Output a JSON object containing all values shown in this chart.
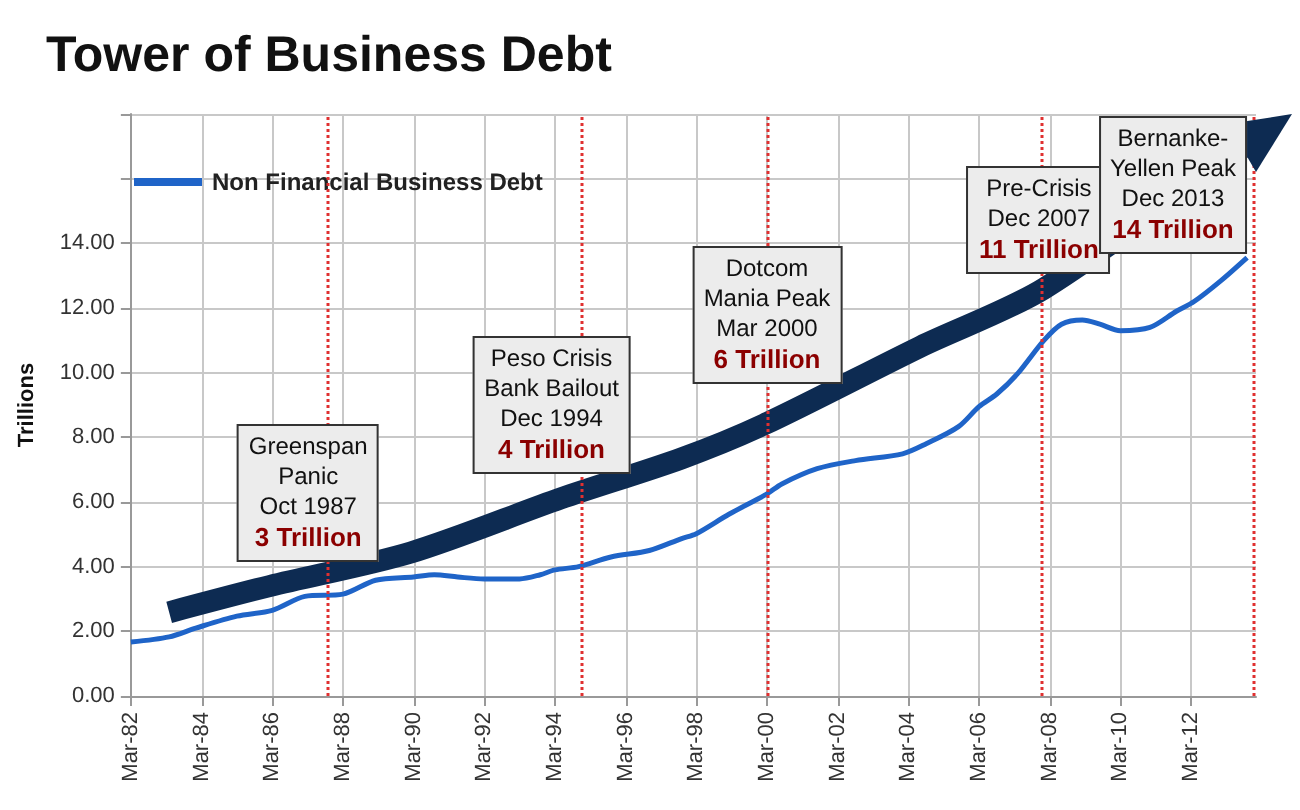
{
  "chart_data": {
    "type": "line",
    "title": "Tower of Business Debt",
    "ylabel": "Trillions",
    "x": [
      "1982-03",
      "1983-04",
      "1984-01",
      "1985-03",
      "1986-03",
      "1987-02",
      "1988-03",
      "1989-02",
      "1990-03",
      "1990-10",
      "1991-06",
      "1992-03",
      "1993-03",
      "1993-10",
      "1994-03",
      "1994-11",
      "1995-10",
      "1996-11",
      "1997-10",
      "1998-03",
      "1999-02",
      "2000-03",
      "2000-08",
      "2001-08",
      "2002-09",
      "2004-01",
      "2004-09",
      "2005-08",
      "2006-03",
      "2006-09",
      "2007-04",
      "2008-01",
      "2008-07",
      "2009-02",
      "2009-08",
      "2010-03",
      "2011-01",
      "2011-10",
      "2012-04",
      "2013-01",
      "2013-10"
    ],
    "series": [
      {
        "name": "Non Financial Business Debt",
        "color": "#1f64c8",
        "values": [
          1.67,
          1.83,
          2.1,
          2.47,
          2.65,
          3.08,
          3.15,
          3.58,
          3.68,
          3.75,
          3.68,
          3.62,
          3.62,
          3.75,
          3.9,
          4.0,
          4.3,
          4.5,
          4.87,
          5.02,
          5.62,
          6.25,
          6.56,
          7.03,
          7.28,
          7.49,
          7.8,
          8.33,
          8.95,
          9.34,
          9.96,
          11.0,
          11.5,
          11.63,
          11.5,
          11.3,
          11.4,
          11.9,
          12.2,
          12.84,
          13.56
        ]
      },
      {
        "color": "#0d2b52",
        "x": [
          "1983-04",
          "1986-02",
          "1990-02",
          "1994-05",
          "1997-10",
          "2000-02",
          "2004-07",
          "2008-01",
          "2013-09"
        ],
        "values": [
          2.59,
          3.4,
          4.44,
          6.11,
          7.35,
          8.4,
          10.8,
          12.6,
          17.0
        ]
      }
    ],
    "xlim": [
      "1982-03",
      "2014-01"
    ],
    "xticks": [
      {
        "value": "1982-03",
        "label": "Mar-82"
      },
      {
        "value": "1984-03",
        "label": "Mar-84"
      },
      {
        "value": "1986-03",
        "label": "Mar-86"
      },
      {
        "value": "1988-03",
        "label": "Mar-88"
      },
      {
        "value": "1990-03",
        "label": "Mar-90"
      },
      {
        "value": "1992-03",
        "label": "Mar-92"
      },
      {
        "value": "1994-03",
        "label": "Mar-94"
      },
      {
        "value": "1996-03",
        "label": "Mar-96"
      },
      {
        "value": "1998-03",
        "label": "Mar-98"
      },
      {
        "value": "2000-03",
        "label": "Mar-00"
      },
      {
        "value": "2002-03",
        "label": "Mar-02"
      },
      {
        "value": "2004-03",
        "label": "Mar-04"
      },
      {
        "value": "2006-03",
        "label": "Mar-06"
      },
      {
        "value": "2008-03",
        "label": "Mar-08"
      },
      {
        "value": "2010-03",
        "label": "Mar-10"
      },
      {
        "value": "2012-03",
        "label": "Mar-12"
      }
    ],
    "ylim": [
      0,
      18
    ],
    "yticks": [
      {
        "value": 0,
        "label": "0.00"
      },
      {
        "value": 2,
        "label": "2.00"
      },
      {
        "value": 4,
        "label": "4.00"
      },
      {
        "value": 6,
        "label": "6.00"
      },
      {
        "value": 8,
        "label": "8.00"
      },
      {
        "value": 10,
        "label": "10.00"
      },
      {
        "value": 12,
        "label": "12.00"
      },
      {
        "value": 14,
        "label": "14.00"
      },
      {
        "value": 16,
        "label": null
      },
      {
        "value": 18,
        "label": null
      }
    ],
    "ref_lines": [
      {
        "axis": "x",
        "value": "1987-10",
        "label": "Greenspan\nPanic\nOct 1987\n3 Trillion",
        "color": "#e03030",
        "line_style": "dotted"
      },
      {
        "axis": "x",
        "value": "1994-12",
        "label": "Peso Crisis\nBank Bailout\nDec 1994\n4 Trillion",
        "color": "#e03030",
        "line_style": "dotted"
      },
      {
        "axis": "x",
        "value": "2000-03",
        "label": "Dotcom\nMania Peak\nMar 2000\n6 Trillion",
        "color": "#e03030",
        "line_style": "dotted"
      },
      {
        "axis": "x",
        "value": "2007-12",
        "label": "Pre-Crisis\nDec 2007\n11 Trillion",
        "color": "#e03030",
        "line_style": "dotted"
      },
      {
        "axis": "x",
        "value": "2013-12",
        "label": "Bernanke-\nYellen Peak\nDec 2013\n14 Trillion",
        "color": "#e03030",
        "line_style": "dotted"
      }
    ],
    "grid": true,
    "legend": "top left",
    "marker": "none",
    "line_style": "solid"
  }
}
